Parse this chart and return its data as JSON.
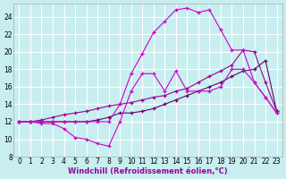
{
  "xlabel": "Windchill (Refroidissement éolien,°C)",
  "bg_color": "#c8eef0",
  "grid_color": "#ffffff",
  "line_color1": "#cc00cc",
  "line_color2": "#990099",
  "line_color3": "#660066",
  "xlim": [
    -0.5,
    23.5
  ],
  "ylim": [
    8,
    25.5
  ],
  "yticks": [
    8,
    10,
    12,
    14,
    16,
    18,
    20,
    22,
    24
  ],
  "xticks": [
    0,
    1,
    2,
    3,
    4,
    5,
    6,
    7,
    8,
    9,
    10,
    11,
    12,
    13,
    14,
    15,
    16,
    17,
    18,
    19,
    20,
    21,
    22,
    23
  ],
  "series1_x": [
    0,
    1,
    2,
    3,
    4,
    5,
    6,
    7,
    8,
    9,
    10,
    11,
    12,
    13,
    14,
    15,
    16,
    17,
    18,
    19,
    20,
    21,
    22,
    23
  ],
  "series1_y": [
    12.0,
    12.0,
    11.8,
    11.8,
    11.2,
    10.2,
    10.0,
    9.5,
    9.2,
    12.0,
    15.5,
    17.5,
    17.5,
    15.5,
    17.8,
    15.5,
    15.5,
    15.5,
    16.0,
    18.0,
    18.0,
    16.5,
    14.8,
    13.0
  ],
  "series2_x": [
    0,
    1,
    2,
    3,
    4,
    5,
    6,
    7,
    8,
    9,
    10,
    11,
    12,
    13,
    14,
    15,
    16,
    17,
    18,
    19,
    20,
    21,
    22,
    23
  ],
  "series2_y": [
    12.0,
    12.0,
    12.2,
    12.5,
    12.8,
    13.0,
    13.2,
    13.5,
    13.8,
    14.0,
    14.2,
    14.5,
    14.8,
    15.0,
    15.5,
    15.8,
    16.5,
    17.2,
    17.8,
    18.5,
    20.2,
    20.0,
    16.5,
    13.2
  ],
  "series3_x": [
    0,
    1,
    2,
    3,
    4,
    5,
    6,
    7,
    8,
    9,
    10,
    11,
    12,
    13,
    14,
    15,
    16,
    17,
    18,
    19,
    20,
    21,
    22,
    23
  ],
  "series3_y": [
    12.0,
    12.0,
    12.0,
    12.0,
    12.0,
    12.0,
    12.0,
    12.2,
    12.5,
    13.0,
    13.0,
    13.2,
    13.5,
    14.0,
    14.5,
    15.0,
    15.5,
    16.0,
    16.5,
    17.2,
    17.8,
    18.0,
    19.0,
    13.2
  ],
  "series_top_x": [
    0,
    1,
    2,
    3,
    4,
    5,
    6,
    7,
    8,
    9,
    10,
    11,
    12,
    13,
    14,
    15,
    16,
    17,
    18,
    19,
    20,
    21,
    22,
    23
  ],
  "series_top_y": [
    12.0,
    12.0,
    12.0,
    12.0,
    12.0,
    12.0,
    12.0,
    12.0,
    12.0,
    14.0,
    17.5,
    19.8,
    22.2,
    23.5,
    24.8,
    25.0,
    24.5,
    24.8,
    22.5,
    20.2,
    20.2,
    16.5,
    14.8,
    13.0
  ],
  "xlabel_color": "#990099",
  "xlabel_fontsize": 6,
  "tick_fontsize": 5.5
}
